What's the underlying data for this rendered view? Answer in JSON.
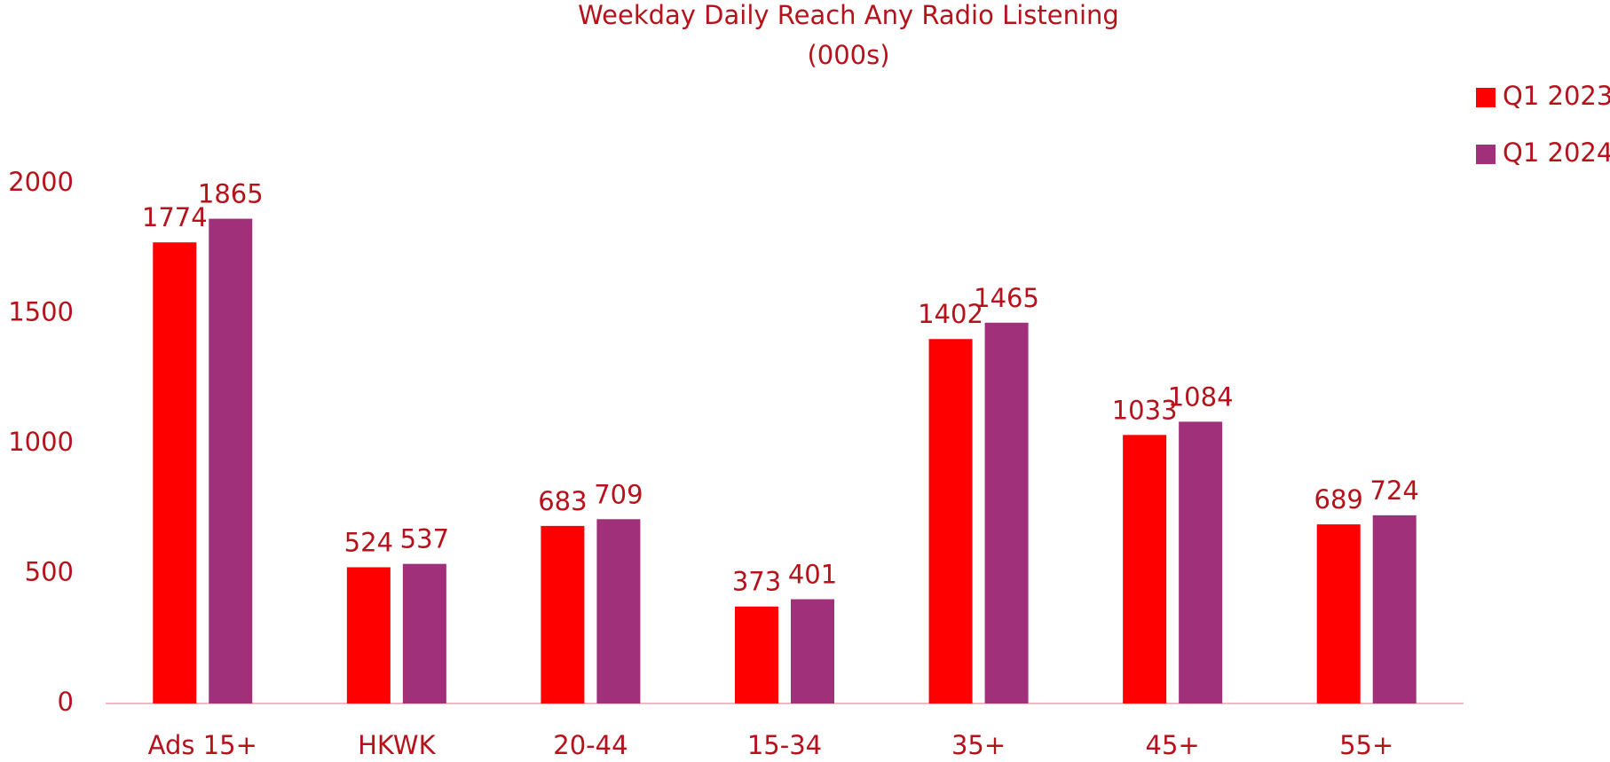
{
  "chart_data": {
    "type": "bar",
    "title": "Weekday Daily Reach Any Radio Listening",
    "subtitle": "(000s)",
    "categories": [
      "Ads 15+",
      "HKWK",
      "20-44",
      "15-34",
      "35+",
      "45+",
      "55+"
    ],
    "series": [
      {
        "name": "Q1 2023",
        "color": "#ff0000",
        "values": [
          1774,
          524,
          683,
          373,
          1402,
          1033,
          689
        ]
      },
      {
        "name": "Q1 2024",
        "color": "#a0307a",
        "values": [
          1865,
          537,
          709,
          401,
          1465,
          1084,
          724
        ]
      }
    ],
    "ylim": [
      0,
      2000
    ],
    "yticks": [
      0,
      500,
      1000,
      1500,
      2000
    ],
    "grid": false,
    "legend": "top-right"
  }
}
